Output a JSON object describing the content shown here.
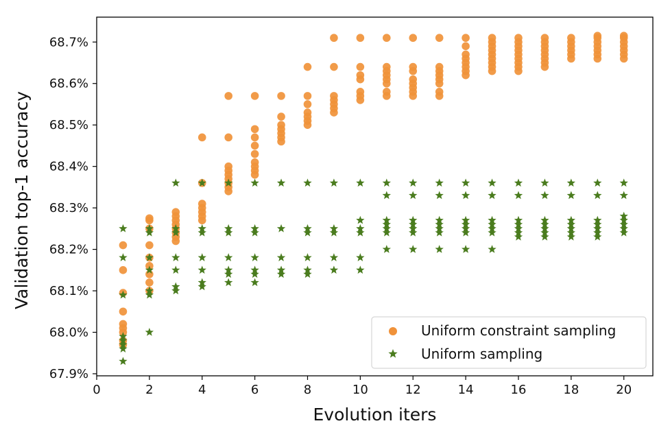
{
  "chart_data": {
    "type": "scatter",
    "xlabel": "Evolution iters",
    "ylabel": "Validation top-1 accuracy",
    "xlim": [
      0,
      21.1
    ],
    "ylim": [
      67.895,
      68.76
    ],
    "xticks": [
      0,
      2,
      4,
      6,
      8,
      10,
      12,
      14,
      16,
      18,
      20
    ],
    "yticks": [
      {
        "value": 67.9,
        "label": "67.9%"
      },
      {
        "value": 68.0,
        "label": "68.0%"
      },
      {
        "value": 68.1,
        "label": "68.1%"
      },
      {
        "value": 68.2,
        "label": "68.2%"
      },
      {
        "value": 68.3,
        "label": "68.3%"
      },
      {
        "value": 68.4,
        "label": "68.4%"
      },
      {
        "value": 68.5,
        "label": "68.5%"
      },
      {
        "value": 68.6,
        "label": "68.6%"
      },
      {
        "value": 68.7,
        "label": "68.7%"
      }
    ],
    "grid": false,
    "legend_position": "lower-right",
    "series": [
      {
        "name": "Uniform constraint sampling",
        "marker": "circle",
        "color": "#f0923a",
        "points": [
          [
            1,
            67.97
          ],
          [
            1,
            67.98
          ],
          [
            1,
            68.0
          ],
          [
            1,
            68.01
          ],
          [
            1,
            68.02
          ],
          [
            1,
            68.05
          ],
          [
            1,
            68.095
          ],
          [
            1,
            68.15
          ],
          [
            1,
            68.21
          ],
          [
            2,
            68.1
          ],
          [
            2,
            68.12
          ],
          [
            2,
            68.14
          ],
          [
            2,
            68.16
          ],
          [
            2,
            68.18
          ],
          [
            2,
            68.21
          ],
          [
            2,
            68.25
          ],
          [
            2,
            68.27
          ],
          [
            2,
            68.275
          ],
          [
            3,
            68.22
          ],
          [
            3,
            68.23
          ],
          [
            3,
            68.24
          ],
          [
            3,
            68.25
          ],
          [
            3,
            68.26
          ],
          [
            3,
            68.27
          ],
          [
            3,
            68.28
          ],
          [
            3,
            68.29
          ],
          [
            4,
            68.27
          ],
          [
            4,
            68.28
          ],
          [
            4,
            68.29
          ],
          [
            4,
            68.3
          ],
          [
            4,
            68.31
          ],
          [
            4,
            68.36
          ],
          [
            4,
            68.47
          ],
          [
            5,
            68.34
          ],
          [
            5,
            68.35
          ],
          [
            5,
            68.36
          ],
          [
            5,
            68.37
          ],
          [
            5,
            68.38
          ],
          [
            5,
            68.39
          ],
          [
            5,
            68.4
          ],
          [
            5,
            68.47
          ],
          [
            5,
            68.57
          ],
          [
            6,
            68.38
          ],
          [
            6,
            68.39
          ],
          [
            6,
            68.4
          ],
          [
            6,
            68.41
          ],
          [
            6,
            68.43
          ],
          [
            6,
            68.45
          ],
          [
            6,
            68.47
          ],
          [
            6,
            68.49
          ],
          [
            6,
            68.57
          ],
          [
            7,
            68.46
          ],
          [
            7,
            68.47
          ],
          [
            7,
            68.48
          ],
          [
            7,
            68.49
          ],
          [
            7,
            68.5
          ],
          [
            7,
            68.52
          ],
          [
            7,
            68.57
          ],
          [
            8,
            68.5
          ],
          [
            8,
            68.51
          ],
          [
            8,
            68.52
          ],
          [
            8,
            68.53
          ],
          [
            8,
            68.55
          ],
          [
            8,
            68.57
          ],
          [
            8,
            68.64
          ],
          [
            9,
            68.53
          ],
          [
            9,
            68.54
          ],
          [
            9,
            68.55
          ],
          [
            9,
            68.56
          ],
          [
            9,
            68.57
          ],
          [
            9,
            68.64
          ],
          [
            9,
            68.71
          ],
          [
            10,
            68.56
          ],
          [
            10,
            68.57
          ],
          [
            10,
            68.58
          ],
          [
            10,
            68.61
          ],
          [
            10,
            68.62
          ],
          [
            10,
            68.64
          ],
          [
            10,
            68.71
          ],
          [
            11,
            68.57
          ],
          [
            11,
            68.58
          ],
          [
            11,
            68.6
          ],
          [
            11,
            68.61
          ],
          [
            11,
            68.62
          ],
          [
            11,
            68.63
          ],
          [
            11,
            68.64
          ],
          [
            11,
            68.71
          ],
          [
            12,
            68.57
          ],
          [
            12,
            68.58
          ],
          [
            12,
            68.59
          ],
          [
            12,
            68.6
          ],
          [
            12,
            68.61
          ],
          [
            12,
            68.63
          ],
          [
            12,
            68.64
          ],
          [
            12,
            68.71
          ],
          [
            13,
            68.57
          ],
          [
            13,
            68.58
          ],
          [
            13,
            68.6
          ],
          [
            13,
            68.61
          ],
          [
            13,
            68.62
          ],
          [
            13,
            68.63
          ],
          [
            13,
            68.64
          ],
          [
            13,
            68.71
          ],
          [
            14,
            68.62
          ],
          [
            14,
            68.63
          ],
          [
            14,
            68.64
          ],
          [
            14,
            68.65
          ],
          [
            14,
            68.66
          ],
          [
            14,
            68.67
          ],
          [
            14,
            68.69
          ],
          [
            14,
            68.71
          ],
          [
            15,
            68.63
          ],
          [
            15,
            68.64
          ],
          [
            15,
            68.65
          ],
          [
            15,
            68.66
          ],
          [
            15,
            68.67
          ],
          [
            15,
            68.68
          ],
          [
            15,
            68.69
          ],
          [
            15,
            68.7
          ],
          [
            15,
            68.71
          ],
          [
            16,
            68.63
          ],
          [
            16,
            68.64
          ],
          [
            16,
            68.65
          ],
          [
            16,
            68.66
          ],
          [
            16,
            68.67
          ],
          [
            16,
            68.68
          ],
          [
            16,
            68.69
          ],
          [
            16,
            68.7
          ],
          [
            16,
            68.71
          ],
          [
            17,
            68.64
          ],
          [
            17,
            68.65
          ],
          [
            17,
            68.66
          ],
          [
            17,
            68.67
          ],
          [
            17,
            68.68
          ],
          [
            17,
            68.69
          ],
          [
            17,
            68.7
          ],
          [
            17,
            68.71
          ],
          [
            18,
            68.66
          ],
          [
            18,
            68.67
          ],
          [
            18,
            68.68
          ],
          [
            18,
            68.69
          ],
          [
            18,
            68.7
          ],
          [
            18,
            68.71
          ],
          [
            19,
            68.66
          ],
          [
            19,
            68.67
          ],
          [
            19,
            68.68
          ],
          [
            19,
            68.69
          ],
          [
            19,
            68.7
          ],
          [
            19,
            68.71
          ],
          [
            19,
            68.715
          ],
          [
            20,
            68.66
          ],
          [
            20,
            68.67
          ],
          [
            20,
            68.68
          ],
          [
            20,
            68.69
          ],
          [
            20,
            68.7
          ],
          [
            20,
            68.71
          ],
          [
            20,
            68.715
          ]
        ]
      },
      {
        "name": "Uniform sampling",
        "marker": "star",
        "color": "#4a7c1e",
        "points": [
          [
            1,
            67.93
          ],
          [
            1,
            67.96
          ],
          [
            1,
            67.97
          ],
          [
            1,
            67.98
          ],
          [
            1,
            67.99
          ],
          [
            1,
            68.09
          ],
          [
            1,
            68.18
          ],
          [
            1,
            68.25
          ],
          [
            2,
            68.0
          ],
          [
            2,
            68.09
          ],
          [
            2,
            68.1
          ],
          [
            2,
            68.15
          ],
          [
            2,
            68.18
          ],
          [
            2,
            68.24
          ],
          [
            2,
            68.25
          ],
          [
            3,
            68.1
          ],
          [
            3,
            68.11
          ],
          [
            3,
            68.15
          ],
          [
            3,
            68.18
          ],
          [
            3,
            68.24
          ],
          [
            3,
            68.25
          ],
          [
            3,
            68.36
          ],
          [
            4,
            68.11
          ],
          [
            4,
            68.12
          ],
          [
            4,
            68.15
          ],
          [
            4,
            68.18
          ],
          [
            4,
            68.24
          ],
          [
            4,
            68.25
          ],
          [
            4,
            68.36
          ],
          [
            5,
            68.12
          ],
          [
            5,
            68.14
          ],
          [
            5,
            68.15
          ],
          [
            5,
            68.18
          ],
          [
            5,
            68.24
          ],
          [
            5,
            68.25
          ],
          [
            5,
            68.36
          ],
          [
            6,
            68.12
          ],
          [
            6,
            68.14
          ],
          [
            6,
            68.15
          ],
          [
            6,
            68.18
          ],
          [
            6,
            68.24
          ],
          [
            6,
            68.25
          ],
          [
            6,
            68.36
          ],
          [
            7,
            68.14
          ],
          [
            7,
            68.15
          ],
          [
            7,
            68.18
          ],
          [
            7,
            68.25
          ],
          [
            7,
            68.36
          ],
          [
            8,
            68.14
          ],
          [
            8,
            68.15
          ],
          [
            8,
            68.18
          ],
          [
            8,
            68.24
          ],
          [
            8,
            68.25
          ],
          [
            8,
            68.36
          ],
          [
            9,
            68.15
          ],
          [
            9,
            68.18
          ],
          [
            9,
            68.24
          ],
          [
            9,
            68.25
          ],
          [
            9,
            68.36
          ],
          [
            10,
            68.15
          ],
          [
            10,
            68.18
          ],
          [
            10,
            68.24
          ],
          [
            10,
            68.25
          ],
          [
            10,
            68.27
          ],
          [
            10,
            68.36
          ],
          [
            11,
            68.2
          ],
          [
            11,
            68.24
          ],
          [
            11,
            68.25
          ],
          [
            11,
            68.26
          ],
          [
            11,
            68.27
          ],
          [
            11,
            68.33
          ],
          [
            11,
            68.36
          ],
          [
            12,
            68.2
          ],
          [
            12,
            68.24
          ],
          [
            12,
            68.25
          ],
          [
            12,
            68.26
          ],
          [
            12,
            68.27
          ],
          [
            12,
            68.33
          ],
          [
            12,
            68.36
          ],
          [
            13,
            68.2
          ],
          [
            13,
            68.24
          ],
          [
            13,
            68.25
          ],
          [
            13,
            68.26
          ],
          [
            13,
            68.27
          ],
          [
            13,
            68.33
          ],
          [
            13,
            68.36
          ],
          [
            14,
            68.2
          ],
          [
            14,
            68.24
          ],
          [
            14,
            68.25
          ],
          [
            14,
            68.26
          ],
          [
            14,
            68.27
          ],
          [
            14,
            68.33
          ],
          [
            14,
            68.36
          ],
          [
            15,
            68.2
          ],
          [
            15,
            68.24
          ],
          [
            15,
            68.25
          ],
          [
            15,
            68.26
          ],
          [
            15,
            68.27
          ],
          [
            15,
            68.33
          ],
          [
            15,
            68.36
          ],
          [
            16,
            68.23
          ],
          [
            16,
            68.24
          ],
          [
            16,
            68.25
          ],
          [
            16,
            68.26
          ],
          [
            16,
            68.27
          ],
          [
            16,
            68.33
          ],
          [
            16,
            68.36
          ],
          [
            17,
            68.23
          ],
          [
            17,
            68.24
          ],
          [
            17,
            68.25
          ],
          [
            17,
            68.26
          ],
          [
            17,
            68.27
          ],
          [
            17,
            68.33
          ],
          [
            17,
            68.36
          ],
          [
            18,
            68.23
          ],
          [
            18,
            68.24
          ],
          [
            18,
            68.25
          ],
          [
            18,
            68.26
          ],
          [
            18,
            68.27
          ],
          [
            18,
            68.33
          ],
          [
            18,
            68.36
          ],
          [
            19,
            68.23
          ],
          [
            19,
            68.24
          ],
          [
            19,
            68.25
          ],
          [
            19,
            68.26
          ],
          [
            19,
            68.27
          ],
          [
            19,
            68.33
          ],
          [
            19,
            68.36
          ],
          [
            20,
            68.24
          ],
          [
            20,
            68.25
          ],
          [
            20,
            68.26
          ],
          [
            20,
            68.27
          ],
          [
            20,
            68.28
          ],
          [
            20,
            68.33
          ],
          [
            20,
            68.36
          ]
        ]
      }
    ]
  }
}
